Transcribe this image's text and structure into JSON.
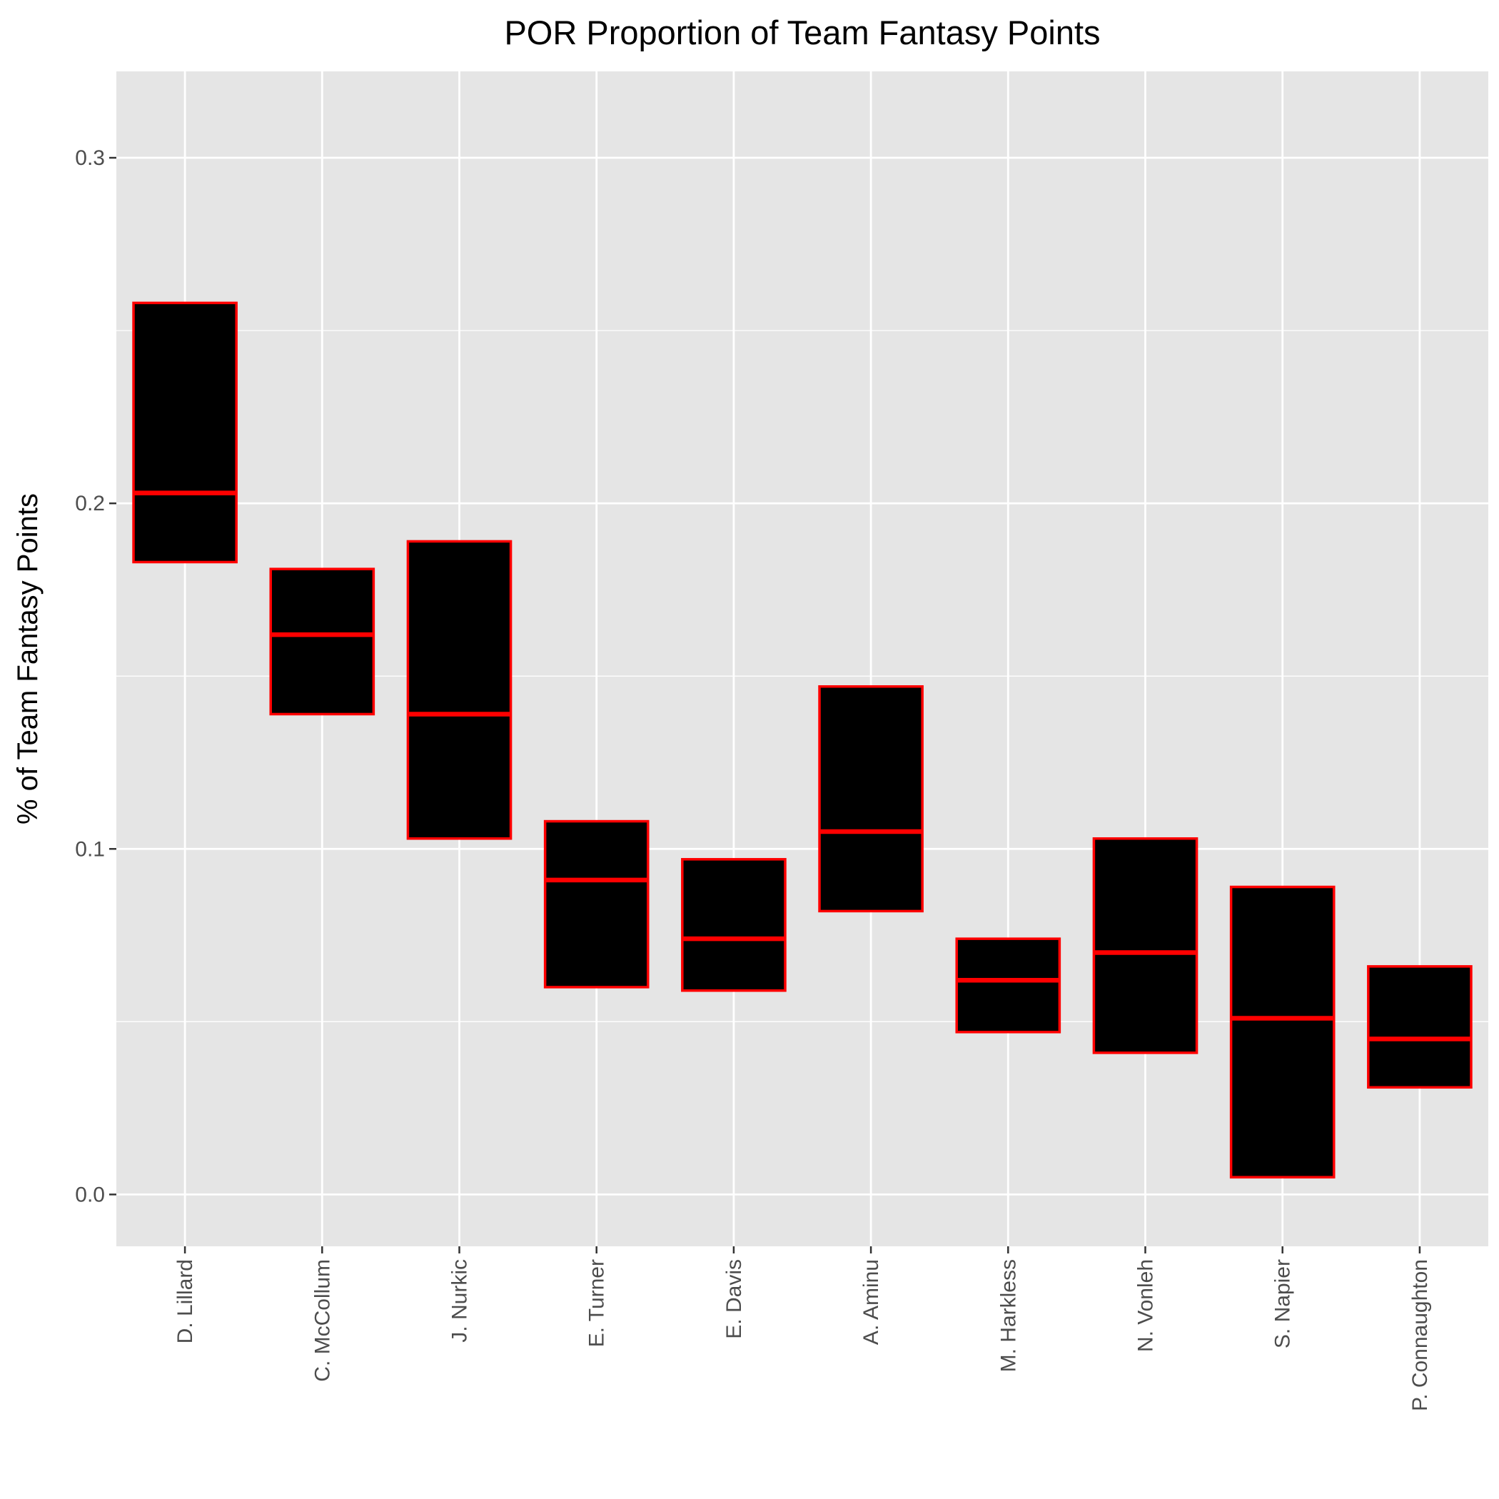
{
  "chart_data": {
    "type": "box",
    "title": "POR Proportion of Team Fantasy Points",
    "xlabel": "",
    "ylabel": "% of Team Fantasy Points",
    "ylim": [
      -0.015,
      0.325
    ],
    "yticks": [
      0.0,
      0.1,
      0.2,
      0.3
    ],
    "ytick_labels": [
      "0.0",
      "0.1",
      "0.2",
      "0.3"
    ],
    "grid": true,
    "box_fill": "#000000",
    "box_stroke": "#ff0000",
    "panel_bg": "#e5e5e5",
    "categories": [
      "D. Lillard",
      "C. McCollum",
      "J. Nurkic",
      "E. Turner",
      "E. Davis",
      "A. Aminu",
      "M. Harkless",
      "N. Vonleh",
      "S. Napier",
      "P. Connaughton"
    ],
    "boxes": [
      {
        "lower": 0.183,
        "median": 0.203,
        "upper": 0.258
      },
      {
        "lower": 0.139,
        "median": 0.162,
        "upper": 0.181
      },
      {
        "lower": 0.103,
        "median": 0.139,
        "upper": 0.189
      },
      {
        "lower": 0.06,
        "median": 0.091,
        "upper": 0.108
      },
      {
        "lower": 0.059,
        "median": 0.074,
        "upper": 0.097
      },
      {
        "lower": 0.082,
        "median": 0.105,
        "upper": 0.147
      },
      {
        "lower": 0.047,
        "median": 0.062,
        "upper": 0.074
      },
      {
        "lower": 0.041,
        "median": 0.07,
        "upper": 0.103
      },
      {
        "lower": 0.005,
        "median": 0.051,
        "upper": 0.089
      },
      {
        "lower": 0.031,
        "median": 0.045,
        "upper": 0.066
      }
    ]
  }
}
